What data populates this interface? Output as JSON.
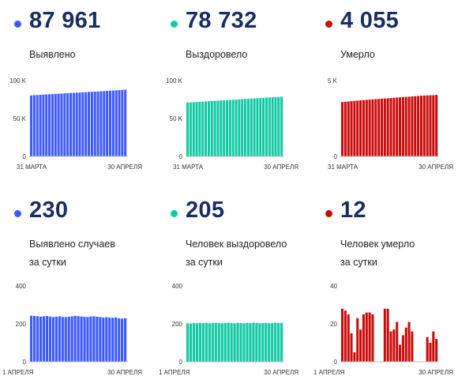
{
  "colors": {
    "blue": "#3d5afe",
    "green": "#12c9a3",
    "red": "#cc0a0a"
  },
  "chart_data": [
    {
      "type": "bar",
      "big_value": "87 961",
      "label": "Выявлено",
      "color": "#3d5afe",
      "ylim": [
        0,
        100000
      ],
      "yticks": [
        0,
        50000,
        100000
      ],
      "ytick_labels": [
        "0",
        "50 K",
        "100 K"
      ],
      "xtick_labels": [
        "31 МАРТА",
        "30 АПРЕЛЯ"
      ],
      "values": [
        80400,
        80700,
        80950,
        81200,
        81500,
        81750,
        82000,
        82200,
        82450,
        82700,
        82950,
        83150,
        83400,
        83650,
        83850,
        84100,
        84300,
        84550,
        84750,
        85000,
        85200,
        85450,
        85650,
        85900,
        86150,
        86400,
        86650,
        86900,
        87150,
        87400,
        87700,
        87961
      ]
    },
    {
      "type": "bar",
      "big_value": "78 732",
      "label": "Выздоровело",
      "color": "#12c9a3",
      "ylim": [
        0,
        100000
      ],
      "yticks": [
        0,
        50000,
        100000
      ],
      "ytick_labels": [
        "0",
        "50 K",
        "100 K"
      ],
      "xtick_labels": [
        "31 МАРТА",
        "30 АПРЕЛЯ"
      ],
      "values": [
        71000,
        71250,
        71500,
        71750,
        72000,
        72250,
        72500,
        72750,
        73000,
        73250,
        73500,
        73750,
        74000,
        74250,
        74500,
        74750,
        75000,
        75250,
        75500,
        75750,
        76000,
        76250,
        76500,
        76750,
        77000,
        77250,
        77500,
        77750,
        78000,
        78250,
        78500,
        78732
      ]
    },
    {
      "type": "bar",
      "big_value": "4 055",
      "label": "Умерло",
      "color": "#cc0a0a",
      "ylim": [
        0,
        5000
      ],
      "yticks": [
        0,
        5000
      ],
      "ytick_labels": [
        "0",
        "5 K"
      ],
      "xtick_labels": [
        "31 МАРТА",
        "30 АПРЕЛЯ"
      ],
      "values": [
        3580,
        3600,
        3620,
        3640,
        3660,
        3680,
        3700,
        3715,
        3730,
        3745,
        3760,
        3775,
        3790,
        3805,
        3820,
        3835,
        3850,
        3865,
        3880,
        3895,
        3910,
        3925,
        3940,
        3955,
        3970,
        3985,
        4000,
        4010,
        4020,
        4030,
        4040,
        4055
      ]
    },
    {
      "type": "bar",
      "big_value": "230",
      "label": "Выявлено случаев\nза сутки",
      "color": "#3d5afe",
      "ylim": [
        0,
        400
      ],
      "yticks": [
        0,
        200,
        400
      ],
      "ytick_labels": [
        "0",
        "200",
        "400"
      ],
      "xtick_labels": [
        "1 АПРЕЛЯ",
        "30 АПРЕЛЯ"
      ],
      "values": [
        243,
        242,
        240,
        238,
        240,
        241,
        239,
        236,
        238,
        240,
        237,
        236,
        238,
        240,
        242,
        241,
        239,
        237,
        236,
        239,
        240,
        238,
        236,
        234,
        235,
        233,
        232,
        234,
        229,
        228,
        230
      ]
    },
    {
      "type": "bar",
      "big_value": "205",
      "label": "Человек выздоровело\nза сутки",
      "color": "#12c9a3",
      "ylim": [
        0,
        400
      ],
      "yticks": [
        0,
        200,
        400
      ],
      "ytick_labels": [
        "0",
        "200",
        "400"
      ],
      "xtick_labels": [
        "1 АПРЕЛЯ",
        "30 АПРЕЛЯ"
      ],
      "values": [
        203,
        202,
        204,
        203,
        205,
        204,
        206,
        203,
        204,
        205,
        204,
        203,
        205,
        206,
        204,
        203,
        205,
        204,
        203,
        205,
        204,
        206,
        205,
        203,
        204,
        205,
        203,
        204,
        206,
        205,
        205
      ]
    },
    {
      "type": "bar",
      "big_value": "12",
      "label": "Человек умерло\nза сутки",
      "color": "#cc0a0a",
      "ylim": [
        0,
        40
      ],
      "yticks": [
        0,
        20,
        40
      ],
      "ytick_labels": [
        "0",
        "20",
        "40"
      ],
      "xtick_labels": [
        "1 АПРЕЛЯ",
        "30 АПРЕЛЯ"
      ],
      "values": [
        28,
        27,
        25,
        15,
        5,
        23,
        17,
        25,
        26,
        26,
        25,
        0,
        0,
        0,
        28,
        28,
        16,
        17,
        21,
        9,
        14,
        18,
        21,
        16,
        0,
        0,
        0,
        0,
        13,
        10,
        16,
        12
      ]
    }
  ]
}
